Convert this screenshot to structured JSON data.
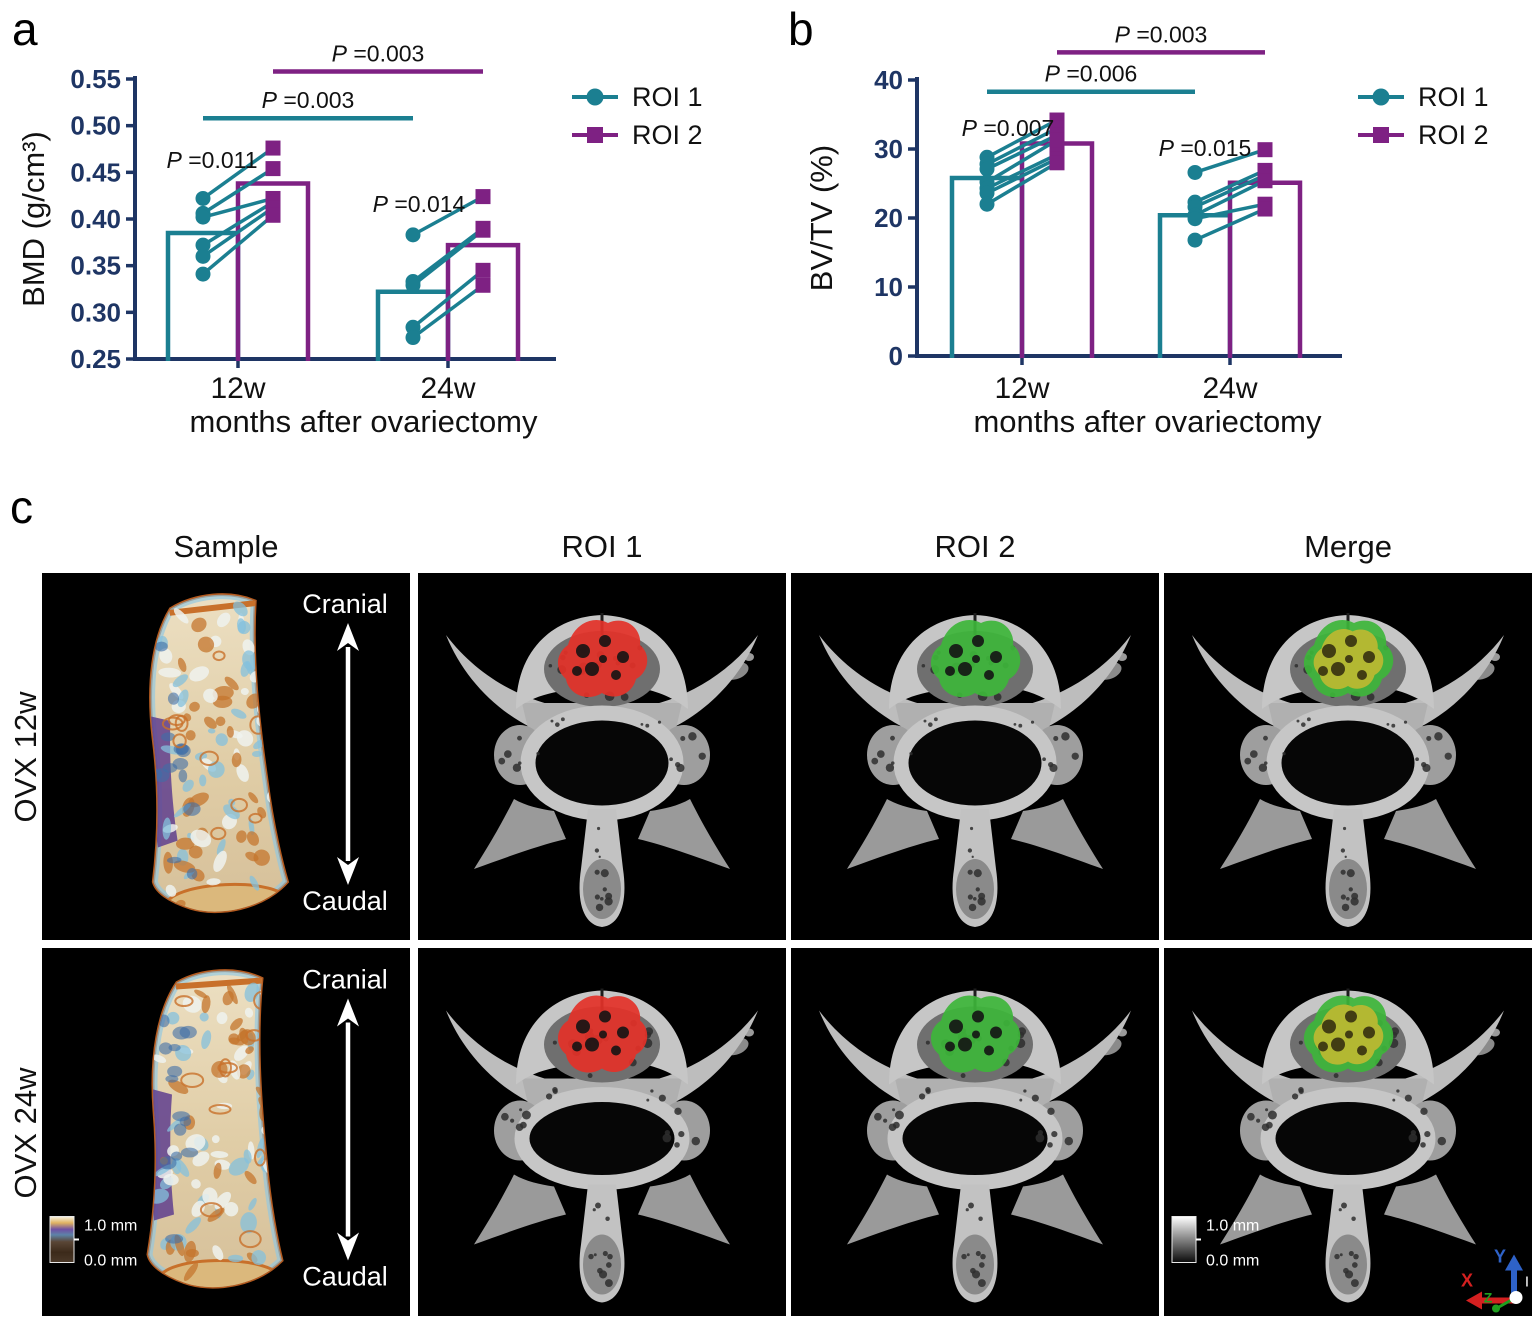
{
  "labels": {
    "a": "a",
    "b": "b",
    "c": "c"
  },
  "colors": {
    "roi1": "#1B7F91",
    "roi2": "#7E2183",
    "axis": "#1E3564",
    "text": "#111111",
    "roi1_overlay": "#E33128",
    "roi2_overlay": "#3DB53A",
    "merge_fill": "#B9B832",
    "merge_edge": "#3DB53A"
  },
  "chart_data": [
    {
      "panel": "a",
      "type": "paired-bar-scatter",
      "ylabel": "BMD (g/cm³)",
      "xlabel": "months after ovariectomy",
      "categories": [
        "12w",
        "24w"
      ],
      "ylim": [
        0.25,
        0.55
      ],
      "yticks": [
        "0.25",
        "0.30",
        "0.35",
        "0.40",
        "0.45",
        "0.50",
        "0.55"
      ],
      "legend": [
        {
          "label": "ROI 1",
          "marker": "circle"
        },
        {
          "label": "ROI 2",
          "marker": "square"
        }
      ],
      "series": [
        {
          "name": "ROI 1",
          "bar_means": [
            0.385,
            0.322
          ]
        },
        {
          "name": "ROI 2",
          "bar_means": [
            0.438,
            0.372
          ]
        }
      ],
      "pairs": [
        [
          [
            0.422,
            0.476
          ],
          [
            0.406,
            0.454
          ],
          [
            0.402,
            0.422
          ],
          [
            0.372,
            0.418
          ],
          [
            0.36,
            0.412
          ],
          [
            0.341,
            0.404
          ]
        ],
        [
          [
            0.383,
            0.424
          ],
          [
            0.333,
            0.39
          ],
          [
            0.329,
            0.388
          ],
          [
            0.284,
            0.345
          ],
          [
            0.273,
            0.329
          ]
        ]
      ],
      "p_within": [
        {
          "label": "P =0.011"
        },
        {
          "label": "P =0.014"
        }
      ],
      "p_between": [
        {
          "series": 0,
          "label": "P =0.003",
          "height": 0.508
        },
        {
          "series": 1,
          "label": "P =0.003",
          "height": 0.558
        }
      ]
    },
    {
      "panel": "b",
      "type": "paired-bar-scatter",
      "ylabel": "BV/TV (%)",
      "xlabel": "months after ovariectomy",
      "categories": [
        "12w",
        "24w"
      ],
      "ylim": [
        0,
        40
      ],
      "yticks": [
        "0",
        "10",
        "20",
        "30",
        "40"
      ],
      "legend": [
        {
          "label": "ROI 1",
          "marker": "circle"
        },
        {
          "label": "ROI 2",
          "marker": "square"
        }
      ],
      "series": [
        {
          "name": "ROI 1",
          "bar_means": [
            25.8,
            20.4
          ]
        },
        {
          "name": "ROI 2",
          "bar_means": [
            30.8,
            25.1
          ]
        }
      ],
      "pairs": [
        [
          [
            28.8,
            34.2
          ],
          [
            27.8,
            33.0
          ],
          [
            27.1,
            32.0
          ],
          [
            25.2,
            31.3
          ],
          [
            24.3,
            29.2
          ],
          [
            23.6,
            28.6
          ],
          [
            22.0,
            28.0
          ]
        ],
        [
          [
            26.6,
            29.9
          ],
          [
            22.3,
            26.9
          ],
          [
            21.6,
            26.2
          ],
          [
            20.4,
            25.4
          ],
          [
            19.9,
            22.0
          ],
          [
            16.8,
            21.3
          ]
        ]
      ],
      "p_within": [
        {
          "label": "P =0.007"
        },
        {
          "label": "P =0.015"
        }
      ],
      "p_between": [
        {
          "series": 0,
          "label": "P =0.006",
          "height": 38.3
        },
        {
          "series": 1,
          "label": "P =0.003",
          "height": 44.0
        }
      ]
    }
  ],
  "panel_c": {
    "column_headers": [
      "Sample",
      "ROI 1",
      "ROI 2",
      "Merge"
    ],
    "row_labels": [
      "OVX 12w",
      "OVX 24w"
    ],
    "orientation": {
      "top": "Cranial",
      "bottom": "Caudal"
    },
    "color_scale": {
      "top": "1.0 mm",
      "bottom": "0.0 mm"
    },
    "gray_scale": {
      "top": "1.0 mm",
      "bottom": "0.0 mm"
    },
    "axis_indicator": {
      "x": "X",
      "y": "Y",
      "z": "Z",
      "extra": "I"
    }
  }
}
